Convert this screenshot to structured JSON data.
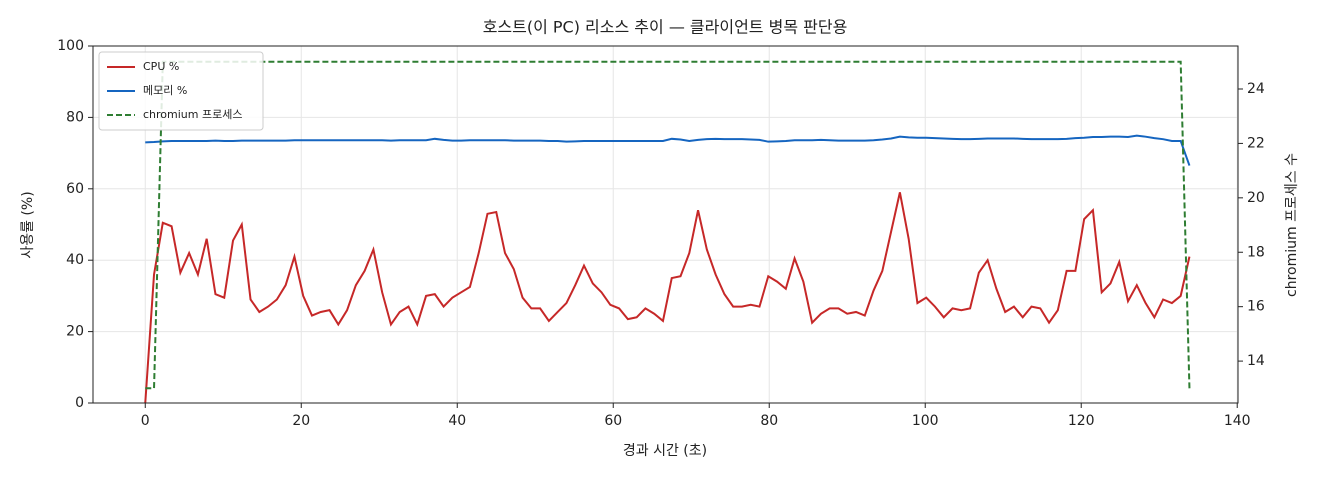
{
  "chart_data": {
    "type": "line",
    "title": "호스트(이 PC) 리소스 추이 — 클라이언트 병목 판단용",
    "xlabel": "경과 시간 (초)",
    "ylabel": "사용률 (%)",
    "y2label": "chromium 프로세스 수",
    "x": [
      0,
      1.125,
      2.25,
      3.375,
      4.5,
      5.625,
      6.75,
      7.875,
      9,
      10.125,
      11.25,
      12.375,
      13.5,
      14.625,
      15.75,
      16.875,
      18,
      19.125,
      20.25,
      21.375,
      22.5,
      23.625,
      24.75,
      25.875,
      27,
      28.125,
      29.25,
      30.375,
      31.5,
      32.625,
      33.75,
      34.875,
      36,
      37.125,
      38.25,
      39.375,
      40.5,
      41.625,
      42.75,
      43.875,
      45,
      46.125,
      47.25,
      48.375,
      49.5,
      50.625,
      51.75,
      52.875,
      54,
      55.125,
      56.25,
      57.375,
      58.5,
      59.625,
      60.75,
      61.875,
      63,
      64.125,
      65.25,
      66.375,
      67.5,
      68.625,
      69.75,
      70.875,
      72,
      73.125,
      74.25,
      75.375,
      76.5,
      77.625,
      78.75,
      79.875,
      81,
      82.125,
      83.25,
      84.375,
      85.5,
      86.625,
      87.75,
      88.875,
      90,
      91.125,
      92.25,
      93.375,
      94.5,
      95.625,
      96.75,
      97.875,
      99,
      100.125,
      101.25,
      102.375,
      103.5,
      104.625,
      105.75,
      106.875,
      108,
      109.125,
      110.25,
      111.375,
      112.5,
      113.625,
      114.75,
      115.875,
      117,
      118.125,
      119.25,
      120.375,
      121.5,
      122.625,
      123.75,
      124.875,
      126,
      127.125,
      128.25,
      129.375,
      130.5,
      131.625,
      132.75,
      133.875
    ],
    "series": [
      {
        "name": "CPU %",
        "color": "#c62828",
        "style": "solid",
        "values": [
          0,
          36,
          50.5,
          49.5,
          36.5,
          42,
          36,
          46,
          30.5,
          29.5,
          45.5,
          50,
          29,
          25.5,
          27,
          29,
          33,
          41,
          30,
          24.5,
          25.5,
          26,
          22,
          26,
          33,
          37,
          43,
          31,
          22,
          25.5,
          27,
          22,
          30,
          30.5,
          27,
          29.5,
          31,
          32.5,
          42,
          53,
          53.5,
          42,
          37.5,
          29.5,
          26.5,
          26.5,
          23,
          25.5,
          28,
          33,
          38.5,
          33.5,
          31,
          27.5,
          26.5,
          23.5,
          24,
          26.5,
          25,
          23,
          35,
          35.5,
          42,
          54,
          43,
          36,
          30.5,
          27,
          27,
          27.5,
          27,
          35.5,
          34,
          32,
          40.5,
          34,
          22.5,
          25,
          26.5,
          26.5,
          25,
          25.5,
          24.5,
          31.5,
          37,
          48,
          59,
          46,
          28,
          29.5,
          27,
          24,
          26.5,
          26,
          26.5,
          36.5,
          40,
          32,
          25.5,
          27,
          24,
          27,
          26.5,
          22.5,
          26,
          37,
          37,
          51.5,
          54,
          31,
          33.5,
          39.5,
          28.5,
          33,
          28,
          24,
          29,
          28,
          30,
          41
        ]
      },
      {
        "name": "메모리 %",
        "color": "#1565c0",
        "style": "solid",
        "values": [
          73,
          73.1,
          73.3,
          73.4,
          73.4,
          73.4,
          73.4,
          73.4,
          73.5,
          73.4,
          73.4,
          73.5,
          73.5,
          73.5,
          73.5,
          73.5,
          73.5,
          73.6,
          73.6,
          73.6,
          73.6,
          73.6,
          73.6,
          73.6,
          73.6,
          73.6,
          73.6,
          73.6,
          73.5,
          73.6,
          73.6,
          73.6,
          73.6,
          74,
          73.7,
          73.5,
          73.5,
          73.6,
          73.6,
          73.6,
          73.6,
          73.6,
          73.5,
          73.5,
          73.5,
          73.5,
          73.4,
          73.4,
          73.2,
          73.3,
          73.4,
          73.4,
          73.4,
          73.4,
          73.4,
          73.4,
          73.4,
          73.4,
          73.4,
          73.4,
          74,
          73.8,
          73.4,
          73.7,
          73.9,
          74,
          73.9,
          73.9,
          73.9,
          73.8,
          73.7,
          73.2,
          73.3,
          73.4,
          73.6,
          73.6,
          73.6,
          73.7,
          73.6,
          73.5,
          73.5,
          73.5,
          73.5,
          73.6,
          73.8,
          74.1,
          74.6,
          74.4,
          74.3,
          74.3,
          74.2,
          74.1,
          74,
          73.9,
          73.9,
          74,
          74.1,
          74.1,
          74.1,
          74.1,
          74,
          73.9,
          73.9,
          73.9,
          73.9,
          74,
          74.2,
          74.3,
          74.5,
          74.5,
          74.6,
          74.6,
          74.5,
          74.9,
          74.6,
          74.2,
          73.9,
          73.4,
          73.4,
          66.5
        ]
      },
      {
        "name": "chromium 프로세스",
        "color": "#2e7d32",
        "style": "dashed",
        "axis": "y2",
        "values": [
          13,
          13,
          25,
          25,
          25,
          25,
          25,
          25,
          25,
          25,
          25,
          25,
          25,
          25,
          25,
          25,
          25,
          25,
          25,
          25,
          25,
          25,
          25,
          25,
          25,
          25,
          25,
          25,
          25,
          25,
          25,
          25,
          25,
          25,
          25,
          25,
          25,
          25,
          25,
          25,
          25,
          25,
          25,
          25,
          25,
          25,
          25,
          25,
          25,
          25,
          25,
          25,
          25,
          25,
          25,
          25,
          25,
          25,
          25,
          25,
          25,
          25,
          25,
          25,
          25,
          25,
          25,
          25,
          25,
          25,
          25,
          25,
          25,
          25,
          25,
          25,
          25,
          25,
          25,
          25,
          25,
          25,
          25,
          25,
          25,
          25,
          25,
          25,
          25,
          25,
          25,
          25,
          25,
          25,
          25,
          25,
          25,
          25,
          25,
          25,
          25,
          25,
          25,
          25,
          25,
          25,
          25,
          25,
          25,
          25,
          25,
          25,
          25,
          25,
          25,
          25,
          25,
          25,
          25,
          13
        ]
      }
    ],
    "xlim": [
      -6.7,
      140.1
    ],
    "xticks": [
      0,
      20,
      40,
      60,
      80,
      100,
      120,
      140
    ],
    "ylim": [
      0,
      100
    ],
    "yticks": [
      0,
      20,
      40,
      60,
      80,
      100
    ],
    "y2lim": [
      12.46,
      25.58
    ],
    "y2ticks": [
      14,
      16,
      18,
      20,
      22,
      24
    ],
    "grid": true,
    "legend": "upper-left"
  }
}
